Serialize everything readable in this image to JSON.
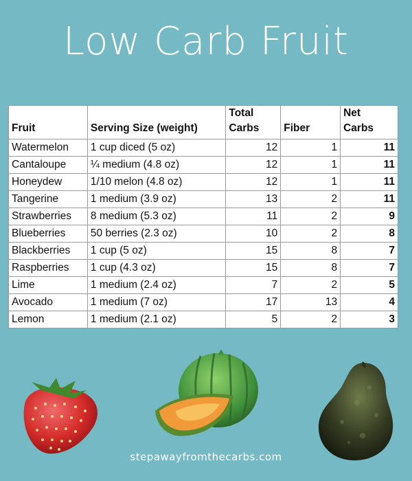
{
  "title": "Low Carb Fruit",
  "table": {
    "headers": [
      "Fruit",
      "Serving Size (weight)",
      "Total\nCarbs",
      "Fiber",
      "Net\nCarbs"
    ],
    "rows": [
      [
        "Watermelon",
        "1 cup diced (5 oz)",
        "12",
        "1",
        "11"
      ],
      [
        "Cantaloupe",
        "¼ medium (4.8 oz)",
        "12",
        "1",
        "11"
      ],
      [
        "Honeydew",
        "1/10 melon (4.8 oz)",
        "12",
        "1",
        "11"
      ],
      [
        "Tangerine",
        "1 medium (3.9 oz)",
        "13",
        "2",
        "11"
      ],
      [
        "Strawberries",
        "8 medium (5.3 oz)",
        "11",
        "2",
        "9"
      ],
      [
        "Blueberries",
        "50 berries (2.3 oz)",
        "10",
        "2",
        "8"
      ],
      [
        "Blackberries",
        "1 cup (5 oz)",
        "15",
        "8",
        "7"
      ],
      [
        "Raspberries",
        "1 cup (4.3 oz)",
        "15",
        "8",
        "7"
      ],
      [
        "Lime",
        "1 medium (2.4 oz)",
        "7",
        "2",
        "5"
      ],
      [
        "Avocado",
        "1 medium (7 oz)",
        "17",
        "13",
        "4"
      ],
      [
        "Lemon",
        "1 medium (2.1 oz)",
        "5",
        "2",
        "3"
      ]
    ]
  },
  "images": {
    "strawberry": "strawberry-illustration",
    "melon": "melon-illustration",
    "avocado": "avocado-illustration"
  },
  "colors": {
    "background": "#74b9c4",
    "title": "#ffffff"
  },
  "footer": "stepawayfromthecarbs.com"
}
